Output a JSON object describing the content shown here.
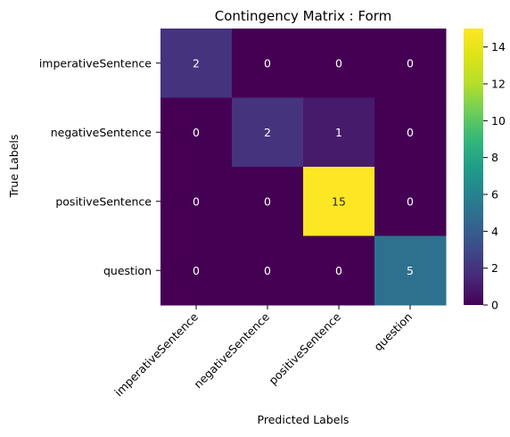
{
  "chart_data": {
    "type": "heatmap",
    "title": "Contingency Matrix : Form",
    "xlabel": "Predicted Labels",
    "ylabel": "True Labels",
    "x_categories": [
      "imperativeSentence",
      "negativeSentence",
      "positiveSentence",
      "question"
    ],
    "y_categories": [
      "imperativeSentence",
      "negativeSentence",
      "positiveSentence",
      "question"
    ],
    "values": [
      [
        2,
        0,
        0,
        0
      ],
      [
        0,
        2,
        1,
        0
      ],
      [
        0,
        0,
        15,
        0
      ],
      [
        0,
        0,
        0,
        5
      ]
    ],
    "colormap": "viridis",
    "vmin": 0,
    "vmax": 15,
    "colorbar_ticks": [
      0,
      2,
      4,
      6,
      8,
      10,
      12,
      14
    ]
  }
}
